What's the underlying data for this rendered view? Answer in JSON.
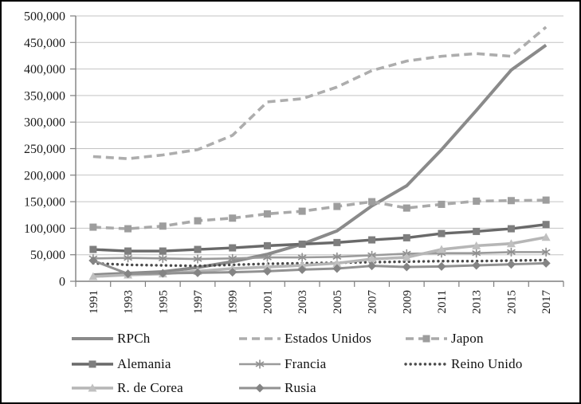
{
  "chart_data": {
    "type": "line",
    "title": "",
    "xlabel": "",
    "ylabel": "",
    "ylim": [
      0,
      500000
    ],
    "y_tick_step": 50000,
    "grid": true,
    "legend_position": "bottom",
    "x_labels": [
      "1991",
      "1993",
      "1995",
      "1997",
      "1999",
      "2001",
      "2003",
      "2005",
      "2007",
      "2009",
      "2011",
      "2013",
      "2015",
      "2017"
    ],
    "y_tick_labels": [
      "0",
      "50,000",
      "100,000",
      "150,000",
      "200,000",
      "250,000",
      "300,000",
      "350,000",
      "400,000",
      "450,000",
      "500,000"
    ],
    "series": [
      {
        "name": "RPCh",
        "key": "rpch",
        "values": [
          12000,
          15000,
          18000,
          26000,
          37000,
          51000,
          70000,
          95000,
          142000,
          180000,
          248000,
          322000,
          398000,
          445000
        ],
        "color": "#8a8a8a",
        "marker_color": "#8a8a8a",
        "dash": "solid",
        "marker": "none",
        "width": 4,
        "legend_row": 0,
        "legend_col": 0
      },
      {
        "name": "Estados Unidos",
        "key": "estados-unidos",
        "values": [
          235000,
          231000,
          238000,
          248000,
          275000,
          338000,
          344000,
          366000,
          397000,
          415000,
          424000,
          429000,
          424000,
          479000
        ],
        "color": "#adadad",
        "marker_color": "#adadad",
        "dash": "dashed",
        "marker": "none",
        "width": 3.6,
        "legend_row": 0,
        "legend_col": 1
      },
      {
        "name": "Japon",
        "key": "japon",
        "values": [
          102000,
          99000,
          104000,
          114000,
          119000,
          127000,
          132000,
          141000,
          150000,
          138000,
          145000,
          151000,
          152000,
          153000
        ],
        "color": "#a9a9a9",
        "marker_color": "#9d9d9d",
        "dash": "dashed",
        "marker": "square",
        "width": 3.6,
        "legend_row": 0,
        "legend_col": 2
      },
      {
        "name": "Alemania",
        "key": "alemania",
        "values": [
          60000,
          57000,
          57000,
          60000,
          63000,
          67000,
          70000,
          73000,
          78000,
          82000,
          90000,
          94000,
          99000,
          107000
        ],
        "color": "#696969",
        "marker_color": "#7e7e7e",
        "dash": "solid",
        "marker": "square",
        "width": 3.4,
        "legend_row": 1,
        "legend_col": 0
      },
      {
        "name": "Francia",
        "key": "francia",
        "values": [
          43000,
          44000,
          43000,
          42000,
          43000,
          45000,
          45000,
          46000,
          49000,
          52000,
          53000,
          53000,
          55000,
          55000
        ],
        "color": "#9a9a9a",
        "marker_color": "#8f8f8f",
        "dash": "solid",
        "marker": "asterisk",
        "width": 2.6,
        "legend_row": 1,
        "legend_col": 1
      },
      {
        "name": "Reino Unido",
        "key": "reino-unido",
        "values": [
          34000,
          31000,
          30000,
          29000,
          31000,
          33000,
          34000,
          35000,
          36000,
          37000,
          38000,
          38000,
          39000,
          40000
        ],
        "color": "#4a4a4a",
        "marker_color": "#4a4a4a",
        "dash": "dotted",
        "marker": "none",
        "width": 3.4,
        "legend_row": 1,
        "legend_col": 2
      },
      {
        "name": "R. de Corea",
        "key": "r-de-corea",
        "values": [
          9000,
          12000,
          14000,
          19000,
          24000,
          27000,
          30000,
          34000,
          42000,
          45000,
          60000,
          67000,
          71000,
          83000
        ],
        "color": "#b6b6b6",
        "marker_color": "#c0c0c0",
        "dash": "solid",
        "marker": "triangle",
        "width": 3.6,
        "legend_row": 2,
        "legend_col": 0
      },
      {
        "name": "Rusia",
        "key": "rusia",
        "values": [
          39000,
          14000,
          15000,
          16000,
          17000,
          19000,
          22000,
          24000,
          29000,
          27000,
          28000,
          30000,
          32000,
          34000
        ],
        "color": "#919191",
        "marker_color": "#848484",
        "dash": "solid",
        "marker": "diamond",
        "width": 3,
        "legend_row": 2,
        "legend_col": 1
      }
    ],
    "axis_color": "#7f7f7f",
    "gridline_color": "#c3c3c3",
    "tick_label_color": "#1a1a1a"
  }
}
